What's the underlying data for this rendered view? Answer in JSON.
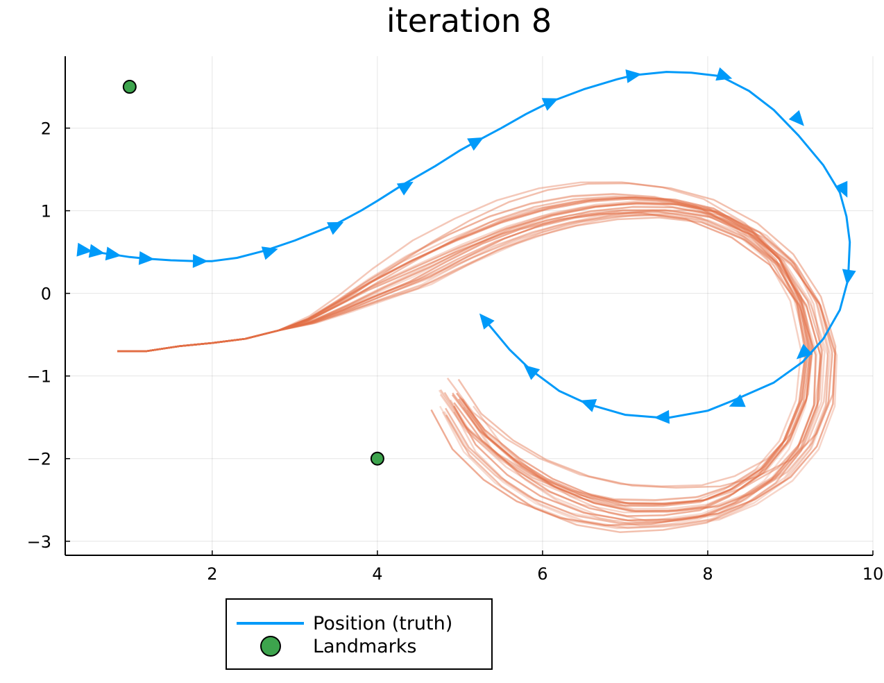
{
  "chart_data": {
    "type": "line",
    "title": "iteration 8",
    "xlabel": "",
    "ylabel": "",
    "xlim": [
      0.22,
      10.0
    ],
    "ylim": [
      -3.17,
      2.87
    ],
    "xticks": [
      2,
      4,
      6,
      8,
      10
    ],
    "xtick_labels": [
      "2",
      "4",
      "6",
      "8",
      "10"
    ],
    "yticks": [
      2,
      1,
      0,
      -1,
      -2,
      -3
    ],
    "ytick_labels": [
      "2",
      "1",
      "0",
      "−1",
      "−2",
      "−3"
    ],
    "grid": true,
    "legend_position": "bottom-left outside",
    "colors": {
      "truth": "#009af9",
      "particles": "#e26f46",
      "landmarks": "#3da44d"
    },
    "series": [
      {
        "name": "Position (truth)",
        "kind": "line-with-arrows",
        "x": [
          0.45,
          0.55,
          0.65,
          0.8,
          1.0,
          1.2,
          1.5,
          1.8,
          2.0,
          2.3,
          2.65,
          3.0,
          3.3,
          3.5,
          3.8,
          4.0,
          4.3,
          4.7,
          5.0,
          5.2,
          5.5,
          5.8,
          6.1,
          6.5,
          6.9,
          7.1,
          7.5,
          7.8,
          8.15,
          8.5,
          8.8,
          9.1,
          9.4,
          9.6,
          9.68,
          9.72,
          9.7,
          9.6,
          9.4,
          9.15,
          8.8,
          8.3,
          8.0,
          7.5,
          7.0,
          6.55,
          6.2,
          5.85,
          5.6,
          5.3
        ],
        "y": [
          0.52,
          0.51,
          0.49,
          0.47,
          0.44,
          0.42,
          0.4,
          0.39,
          0.39,
          0.43,
          0.52,
          0.64,
          0.76,
          0.84,
          1.0,
          1.12,
          1.31,
          1.54,
          1.73,
          1.84,
          2.0,
          2.17,
          2.32,
          2.47,
          2.59,
          2.64,
          2.68,
          2.67,
          2.63,
          2.45,
          2.22,
          1.91,
          1.55,
          1.22,
          0.93,
          0.62,
          0.17,
          -0.2,
          -0.55,
          -0.83,
          -1.08,
          -1.3,
          -1.42,
          -1.51,
          -1.47,
          -1.34,
          -1.18,
          -0.92,
          -0.68,
          -0.32
        ],
        "arrow_x": [
          0.45,
          0.6,
          0.8,
          1.2,
          1.85,
          2.7,
          3.5,
          4.35,
          5.2,
          6.1,
          7.1,
          8.2,
          9.1,
          9.65,
          9.7,
          9.15,
          8.35,
          7.45,
          6.55,
          5.85,
          5.3
        ],
        "arrow_y": [
          0.52,
          0.5,
          0.47,
          0.42,
          0.39,
          0.51,
          0.82,
          1.3,
          1.84,
          2.32,
          2.64,
          2.63,
          2.1,
          1.25,
          0.2,
          -0.73,
          -1.33,
          -1.5,
          -1.33,
          -0.93,
          -0.32
        ]
      },
      {
        "name": "",
        "kind": "particle-trajectories",
        "count": 26,
        "shared_start_x": [
          0.85,
          1.2,
          1.6,
          2.0,
          2.4,
          2.8
        ],
        "shared_start_y": [
          -0.7,
          -0.7,
          -0.64,
          -0.6,
          -0.55,
          -0.45
        ]
      }
    ],
    "landmarks": {
      "name": "Landmarks",
      "points": [
        {
          "x": 1.0,
          "y": 2.5
        },
        {
          "x": 4.0,
          "y": -2.0
        }
      ]
    },
    "legend": [
      "Position (truth)",
      "Landmarks"
    ]
  }
}
